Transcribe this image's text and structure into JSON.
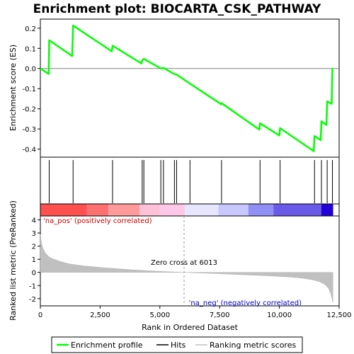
{
  "chart_data": {
    "type": "line",
    "title": "Enrichment plot: BIOCARTA_CSK_PATHWAY",
    "top_panel": {
      "ylabel": "Enrichment score (ES)",
      "ylim": [
        -0.44,
        0.245
      ],
      "yticks": [
        0.2,
        0.1,
        0.0,
        -0.1,
        -0.2,
        -0.3,
        -0.4
      ],
      "ytick_labels": [
        "0.2",
        "0.1",
        "0.0",
        "-0.1",
        "-0.2",
        "-0.3",
        "-0.4"
      ],
      "line_color": "#00ff00",
      "series": [
        {
          "name": "Enrichment profile",
          "x": [
            0,
            350,
            370,
            1330,
            1370,
            2990,
            3020,
            4230,
            4260,
            4330,
            5040,
            5150,
            5610,
            5700,
            6260,
            7560,
            7580,
            9160,
            9190,
            10000,
            10030,
            11440,
            11470,
            11730,
            11760,
            11970,
            12000,
            12190,
            12220
          ],
          "y": [
            0.0,
            -0.027,
            0.14,
            0.062,
            0.213,
            0.085,
            0.113,
            0.025,
            0.04,
            0.048,
            0.0,
            0.003,
            -0.028,
            -0.03,
            -0.075,
            -0.177,
            -0.172,
            -0.303,
            -0.272,
            -0.332,
            -0.296,
            -0.41,
            -0.335,
            -0.355,
            -0.262,
            -0.28,
            -0.163,
            -0.175,
            0.003
          ]
        }
      ]
    },
    "hits": {
      "name": "Hits",
      "x": [
        370,
        1370,
        3020,
        4260,
        4330,
        5040,
        5150,
        5610,
        5700,
        6260,
        7580,
        9190,
        10030,
        11470,
        11760,
        12000,
        12220
      ]
    },
    "bottom_panel": {
      "xlabel": "Rank in Ordered Dataset",
      "ylabel": "Ranked list metric (PreRanked)",
      "xlim": [
        0,
        12500
      ],
      "ylim": [
        -2.55,
        4.3
      ],
      "xticks": [
        0,
        2500,
        5000,
        7500,
        10000,
        12500
      ],
      "xtick_labels": [
        "0",
        "2,500",
        "5,000",
        "7,500",
        "10,000",
        "12,500"
      ],
      "yticks": [
        4,
        3,
        2,
        1,
        0,
        -1,
        -2
      ],
      "ytick_labels": [
        "4",
        "3",
        "2",
        "1",
        "0",
        "-1",
        "-2"
      ],
      "series": [
        {
          "name": "Ranking metric scores",
          "color": "#c0c0c0",
          "x": [
            0,
            40,
            100,
            200,
            350,
            500,
            800,
            1200,
            1800,
            2500,
            3200,
            4000,
            4800,
            5500,
            6013,
            6600,
            7500,
            8500,
            9500,
            10500,
            11000,
            11400,
            11700,
            11900,
            12050,
            12150,
            12200,
            12240
          ],
          "y": [
            2.9,
            2.3,
            1.85,
            1.5,
            1.2,
            1.05,
            0.85,
            0.65,
            0.5,
            0.38,
            0.28,
            0.18,
            0.1,
            0.04,
            0.0,
            -0.04,
            -0.1,
            -0.18,
            -0.26,
            -0.36,
            -0.45,
            -0.57,
            -0.72,
            -0.92,
            -1.2,
            -1.6,
            -2.0,
            -2.3
          ]
        }
      ],
      "zero_cross_label": "Zero cross at 6013",
      "zero_cross_x": 6013,
      "pos_label": "'na_pos' (positively correlated)",
      "neg_label": "'na_neg' (negatively correlated)",
      "pos_label_color": "#cc0000",
      "neg_label_color": "#0000cc"
    },
    "color_bar": [
      {
        "from": 0,
        "to": 1950,
        "color": "#ff5050"
      },
      {
        "from": 1950,
        "to": 2850,
        "color": "#ff7070"
      },
      {
        "from": 2850,
        "to": 4150,
        "color": "#ff9a9a"
      },
      {
        "from": 4150,
        "to": 5000,
        "color": "#ffc0d8"
      },
      {
        "from": 5000,
        "to": 6050,
        "color": "#ffc8e8"
      },
      {
        "from": 6050,
        "to": 7450,
        "color": "#e6e6ff"
      },
      {
        "from": 7450,
        "to": 8700,
        "color": "#c8c8ff"
      },
      {
        "from": 8700,
        "to": 9750,
        "color": "#8f8ff5"
      },
      {
        "from": 9750,
        "to": 11750,
        "color": "#6a5ae8"
      },
      {
        "from": 11750,
        "to": 12250,
        "color": "#2200d8"
      }
    ],
    "legend": {
      "position": "bottom",
      "items": [
        {
          "label": "Enrichment profile",
          "color": "#00ff00"
        },
        {
          "label": "Hits",
          "color": "#000000"
        },
        {
          "label": "Ranking metric scores",
          "color": "#c0c0c0"
        }
      ]
    }
  }
}
